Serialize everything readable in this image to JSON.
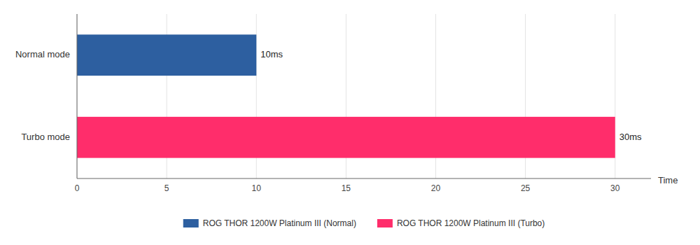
{
  "chart_data": {
    "type": "bar",
    "orientation": "horizontal",
    "stacked": true,
    "categories": [
      "Turbo mode",
      "Normal mode"
    ],
    "series": [
      {
        "name": "ROG THOR 1200W Platinum III (Normal)",
        "color": "#2d5fa0",
        "values": [
          null,
          10
        ],
        "value_labels": [
          null,
          "10ms"
        ]
      },
      {
        "name": "ROG THOR 1200W Platinum III (Turbo)",
        "color": "#ff2d6b",
        "values": [
          30,
          null
        ],
        "value_labels": [
          "30ms",
          null
        ]
      }
    ],
    "xlabel": "Time",
    "xlim": [
      0,
      32
    ],
    "xticks": [
      0,
      5,
      10,
      15,
      20,
      25,
      30
    ],
    "grid": true,
    "data_labels": true,
    "legend": "bottom"
  }
}
